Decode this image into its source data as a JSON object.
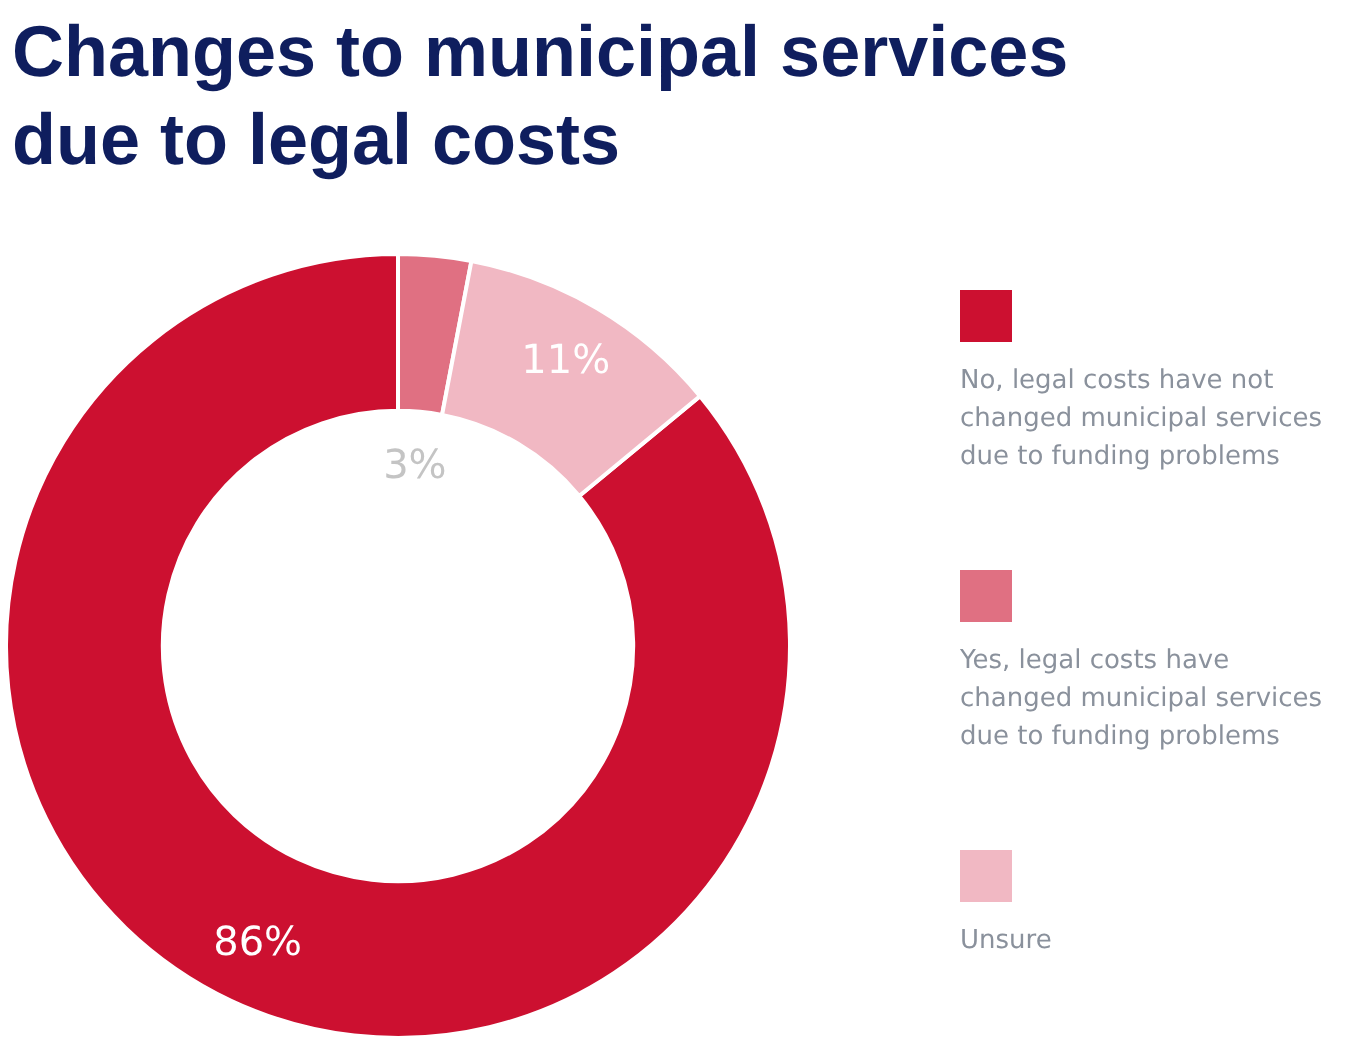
{
  "chart_data": {
    "type": "donut",
    "title": "Changes to municipal services due to legal costs",
    "categories": [
      "No, legal costs have not changed municipal services due to funding problems",
      "Yes, legal costs have changed municipal services due to funding problems",
      "Unsure"
    ],
    "values": [
      86,
      3,
      11
    ],
    "colors": [
      "#cc1030",
      "#e07082",
      "#f1b8c3"
    ],
    "value_labels": [
      "86%",
      "3%",
      "11%"
    ],
    "legend": "right"
  }
}
